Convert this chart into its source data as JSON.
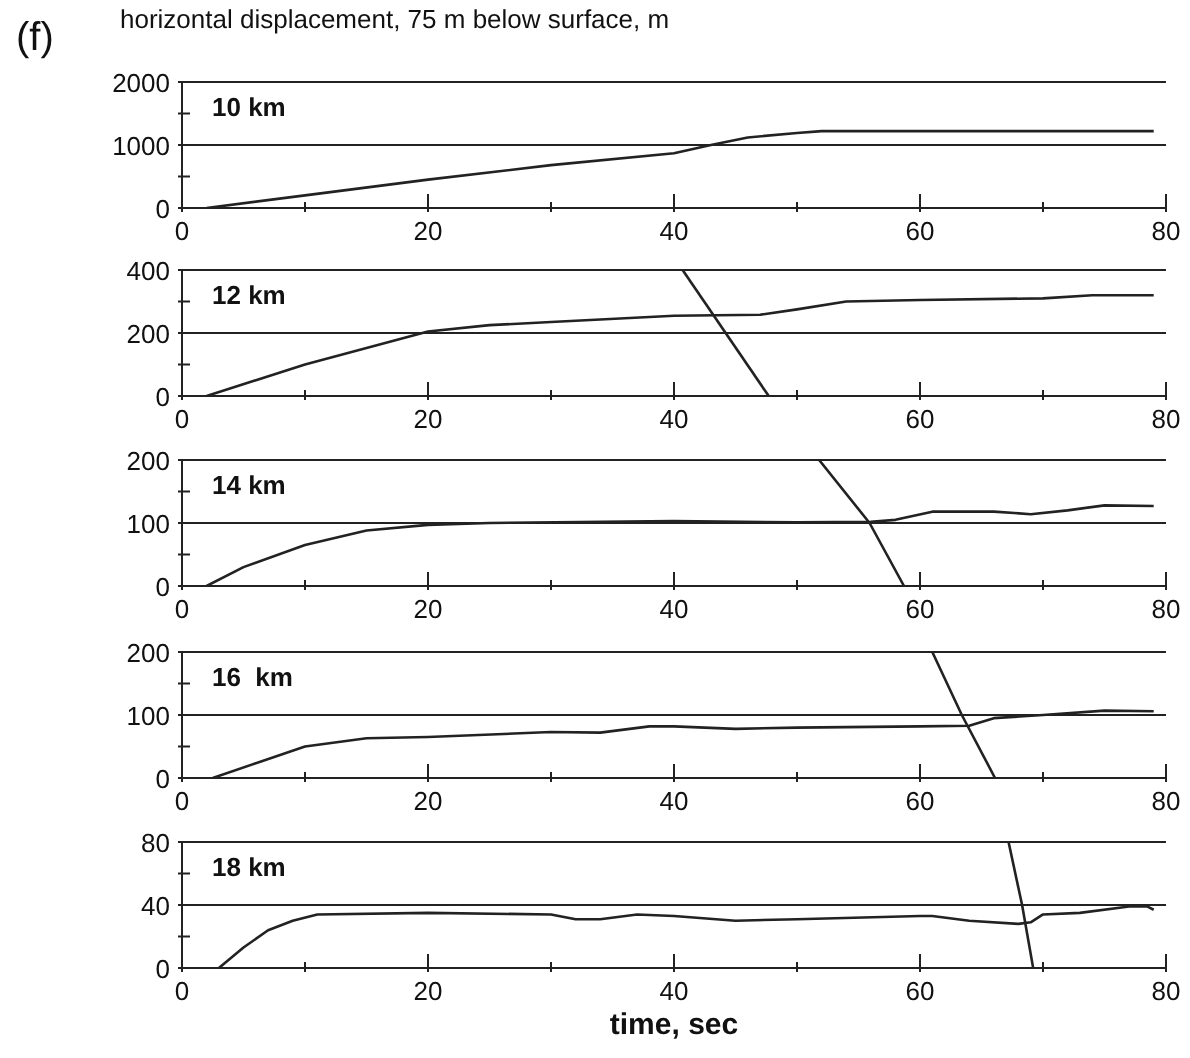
{
  "chart_data": [
    {
      "type": "line",
      "title": "horizontal displacement, 75 m below surface, m",
      "annotations": [
        "(f)",
        "10 km"
      ],
      "xlim": [
        0,
        80
      ],
      "xticks": [
        0,
        {
          "value": 10,
          "label": null
        },
        20,
        {
          "value": 30,
          "label": null
        },
        40,
        {
          "value": 50,
          "label": null
        },
        60,
        {
          "value": 70,
          "label": null
        },
        80
      ],
      "ylim": [
        0,
        2000
      ],
      "yticks": [
        0,
        {
          "value": 500,
          "label": null
        },
        1000,
        {
          "value": 1500,
          "label": null
        },
        2000
      ],
      "ref_lines": [
        {
          "axis": "y",
          "value": 1000,
          "color": "#222222"
        }
      ],
      "series": [
        {
          "color": "#222222",
          "x": [
            2,
            10,
            20,
            30,
            40,
            43,
            46,
            50,
            52,
            79
          ],
          "values": [
            0,
            200,
            450,
            680,
            870,
            1000,
            1120,
            1190,
            1220,
            1220
          ]
        }
      ]
    },
    {
      "type": "line",
      "annotations": [
        "12 km"
      ],
      "xlim": [
        0,
        80
      ],
      "xticks": [
        0,
        {
          "value": 10,
          "label": null
        },
        20,
        {
          "value": 30,
          "label": null
        },
        40,
        {
          "value": 50,
          "label": null
        },
        60,
        {
          "value": 70,
          "label": null
        },
        80
      ],
      "ylim": [
        0,
        400
      ],
      "yticks": [
        0,
        {
          "value": 100,
          "label": null
        },
        200,
        {
          "value": 300,
          "label": null
        },
        400
      ],
      "ref_lines": [
        {
          "axis": "y",
          "value": 200,
          "color": "#222222"
        }
      ],
      "series": [
        {
          "color": "#222222",
          "x": [
            2,
            10,
            20,
            25,
            30,
            40,
            47,
            50,
            54,
            60,
            70,
            74,
            79
          ],
          "values": [
            0,
            100,
            205,
            225,
            235,
            255,
            258,
            275,
            300,
            305,
            310,
            320,
            320
          ]
        },
        {
          "color": "#222222",
          "x": [
            40.7,
            47.7
          ],
          "values": [
            400,
            0
          ]
        }
      ]
    },
    {
      "type": "line",
      "annotations": [
        "14 km"
      ],
      "xlim": [
        0,
        80
      ],
      "xticks": [
        0,
        {
          "value": 10,
          "label": null
        },
        20,
        {
          "value": 30,
          "label": null
        },
        40,
        {
          "value": 50,
          "label": null
        },
        60,
        {
          "value": 70,
          "label": null
        },
        80
      ],
      "ylim": [
        0,
        200
      ],
      "yticks": [
        0,
        {
          "value": 50,
          "label": null
        },
        100,
        {
          "value": 150,
          "label": null
        },
        200
      ],
      "ref_lines": [
        {
          "axis": "y",
          "value": 100,
          "color": "#222222"
        }
      ],
      "series": [
        {
          "color": "#222222",
          "x": [
            2,
            5,
            10,
            15,
            20,
            25,
            40,
            50,
            56,
            58,
            61,
            66,
            69,
            72,
            75,
            79
          ],
          "values": [
            0,
            30,
            65,
            88,
            97,
            100,
            103,
            101,
            102,
            105,
            118,
            118,
            114,
            120,
            128,
            127
          ]
        },
        {
          "color": "#222222",
          "x": [
            51.8,
            55.9,
            58.7
          ],
          "values": [
            200,
            100,
            0
          ]
        }
      ]
    },
    {
      "type": "line",
      "annotations": [
        "16  km"
      ],
      "xlim": [
        0,
        80
      ],
      "xticks": [
        0,
        {
          "value": 10,
          "label": null
        },
        20,
        {
          "value": 30,
          "label": null
        },
        40,
        {
          "value": 50,
          "label": null
        },
        60,
        {
          "value": 70,
          "label": null
        },
        80
      ],
      "ylim": [
        0,
        200
      ],
      "yticks": [
        0,
        {
          "value": 50,
          "label": null
        },
        100,
        {
          "value": 150,
          "label": null
        },
        200
      ],
      "ref_lines": [
        {
          "axis": "y",
          "value": 100,
          "color": "#222222"
        }
      ],
      "series": [
        {
          "color": "#222222",
          "x": [
            2.5,
            10,
            15,
            20,
            30,
            34,
            38,
            40,
            45,
            50,
            60,
            64,
            66,
            70,
            75,
            79
          ],
          "values": [
            0,
            50,
            63,
            65,
            73,
            72,
            82,
            82,
            78,
            80,
            82,
            83,
            95,
            100,
            107,
            106
          ]
        },
        {
          "color": "#222222",
          "x": [
            61,
            63.4,
            66.1
          ],
          "values": [
            200,
            100,
            0
          ]
        }
      ]
    },
    {
      "type": "line",
      "annotations": [
        "18 km"
      ],
      "xlabel": "time, sec",
      "xlim": [
        0,
        80
      ],
      "xticks": [
        0,
        {
          "value": 10,
          "label": null
        },
        20,
        {
          "value": 30,
          "label": null
        },
        40,
        {
          "value": 50,
          "label": null
        },
        60,
        {
          "value": 70,
          "label": null
        },
        80
      ],
      "ylim": [
        0,
        80
      ],
      "yticks": [
        0,
        {
          "value": 20,
          "label": null
        },
        40,
        {
          "value": 60,
          "label": null
        },
        80
      ],
      "ref_lines": [
        {
          "axis": "y",
          "value": 40,
          "color": "#222222"
        }
      ],
      "series": [
        {
          "color": "#222222",
          "x": [
            3,
            5,
            7,
            9,
            11,
            20,
            30,
            32,
            34,
            37,
            40,
            45,
            50,
            60,
            61,
            64,
            68,
            69,
            70,
            73,
            77,
            78.5,
            79
          ],
          "values": [
            0,
            13,
            24,
            30,
            34,
            35,
            34,
            31,
            31,
            34,
            33,
            30,
            31,
            33,
            33,
            30,
            28,
            29,
            34,
            35,
            39,
            39,
            37
          ]
        },
        {
          "color": "#222222",
          "x": [
            67.2,
            68.3,
            69.2
          ],
          "values": [
            80,
            40,
            0
          ]
        }
      ]
    }
  ]
}
